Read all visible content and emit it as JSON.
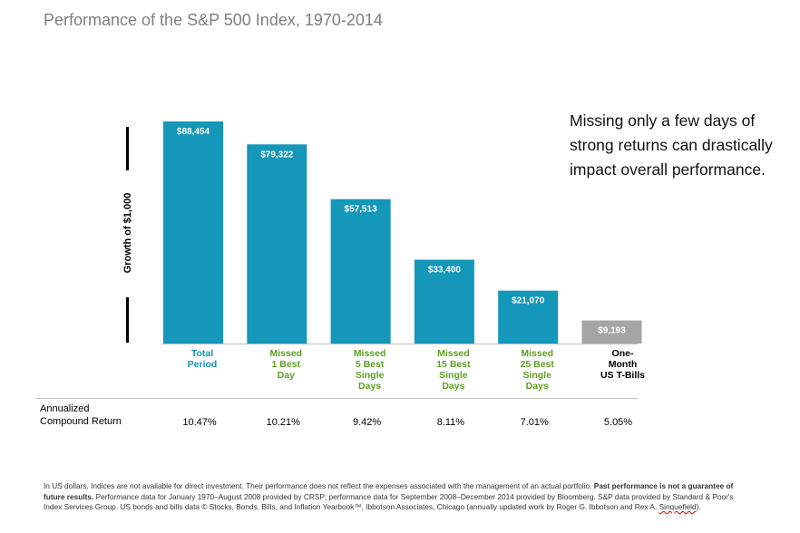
{
  "title": "Performance of the S&P 500 Index, 1970-2014",
  "annotation": "Missing only a few days of strong returns can drastically impact overall performance.",
  "colors": {
    "bar": "#1497b8",
    "bar_tbills": "#a5a5a5",
    "category_teal": "#1497b8",
    "category_green": "#5ea024"
  },
  "returns_label": [
    "Annualized",
    "Compound Return"
  ],
  "footnote": {
    "part1": "In US dollars. Indices are not available for direct investment. Their performance does not reflect the expenses associated with the management of an actual portfolio. ",
    "bold": "Past performance is not a guarantee of future results.",
    "part2": " Performance data for January 1970–August 2008 provided by CRSP; performance data for September 2008–December 2014 provided by Bloomberg. S&P data provided by Standard & Poor's Index Services Group. US bonds and bills data © Stocks, Bonds, Bills, and Inflation Yearbook™, Ibbotson Associates, Chicago (annually updated work by Roger G. Ibbotson and Rex A. ",
    "signature": "Sinquefield",
    "end": ")."
  },
  "chart_data": {
    "type": "bar",
    "ylabel": "Growth of $1,000",
    "ylim": [
      0,
      100000
    ],
    "grid": false,
    "categories": [
      {
        "lines": [
          "Total",
          "Period"
        ],
        "color": "teal"
      },
      {
        "lines": [
          "Missed",
          "1 Best",
          "Day"
        ],
        "color": "green"
      },
      {
        "lines": [
          "Missed",
          "5 Best",
          "Single",
          "Days"
        ],
        "color": "green"
      },
      {
        "lines": [
          "Missed",
          "15 Best",
          "Single",
          "Days"
        ],
        "color": "green"
      },
      {
        "lines": [
          "Missed",
          "25 Best",
          "Single",
          "Days"
        ],
        "color": "green"
      },
      {
        "lines": [
          "One-",
          "Month",
          "US T-Bills"
        ],
        "color": "black"
      }
    ],
    "values": [
      88454,
      79322,
      57513,
      33400,
      21070,
      9193
    ],
    "value_labels": [
      "$88,454",
      "$79,322",
      "$57,513",
      "$33,400",
      "$21,070",
      "$9,193"
    ],
    "returns": [
      "10.47%",
      "10.21%",
      "9.42%",
      "8.11%",
      "7.01%",
      "5.05%"
    ]
  }
}
